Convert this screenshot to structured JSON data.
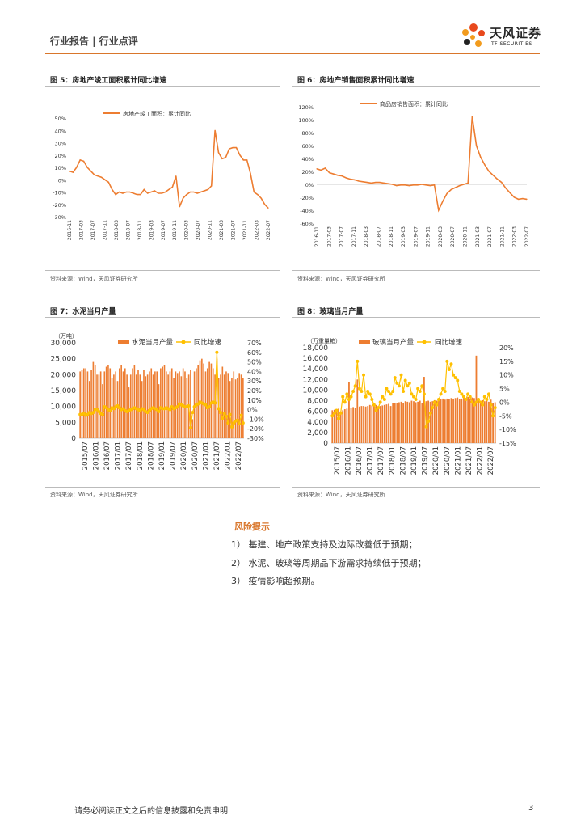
{
  "header": {
    "breadcrumb": "行业报告 | 行业点评",
    "logo_cn": "天风证券",
    "logo_en": "TF SECURITIES",
    "accent": "#d9762b"
  },
  "figures": [
    {
      "title": "图 5：房地产竣工面积累计同比增速",
      "source": "资料来源：Wind，天风证券研究所"
    },
    {
      "title": "图 6：房地产销售面积累计同比增速",
      "source": "资料来源：Wind，天风证券研究所"
    },
    {
      "title": "图 7：水泥当月产量",
      "source": "资料来源：Wind，天风证券研究所"
    },
    {
      "title": "图 8：玻璃当月产量",
      "source": "资料来源：Wind，天风证券研究所"
    }
  ],
  "risk": {
    "title": "风险提示",
    "items": [
      "1） 基建、地产政策支持及边际改善低于预期；",
      "2） 水泥、玻璃等周期品下游需求持续低于预期；",
      "3） 疫情影响超预期。"
    ]
  },
  "footer": {
    "disclaimer": "请务必阅读正文之后的信息披露和免责申明",
    "page": "3"
  },
  "chart_data": [
    {
      "type": "line",
      "title": "图 5：房地产竣工面积累计同比增速",
      "legend": "房地产竣工面积：累计同比",
      "line_color": "#ed7d31",
      "ylim": [
        -30,
        50
      ],
      "yticks": [
        -30,
        -20,
        -10,
        0,
        10,
        20,
        30,
        40,
        50
      ],
      "ytick_labels": [
        "-30%",
        "-20%",
        "-10%",
        "0%",
        "10%",
        "20%",
        "30%",
        "40%",
        "50%"
      ],
      "xtick_labels": [
        "2016-11",
        "2017-03",
        "2017-07",
        "2017-11",
        "2018-03",
        "2018-07",
        "2018-11",
        "2019-03",
        "2019-07",
        "2019-11",
        "2020-03",
        "2020-07",
        "2020-11",
        "2021-03",
        "2021-07",
        "2021-11",
        "2022-03",
        "2022-07"
      ],
      "values": [
        7,
        6,
        10,
        16,
        15,
        10,
        7,
        4,
        3,
        2,
        0,
        -2,
        -8,
        -12,
        -10,
        -11,
        -10,
        -10,
        -11,
        -12,
        -12,
        -8,
        -11,
        -10,
        -9,
        -11,
        -11,
        -10,
        -8,
        -6,
        3,
        -22,
        -15,
        -12,
        -10,
        -10,
        -11,
        -10,
        -9,
        -8,
        -5,
        40,
        22,
        17,
        18,
        25,
        26,
        26,
        20,
        16,
        16,
        5,
        -10,
        -12,
        -15,
        -20,
        -23
      ]
    },
    {
      "type": "line",
      "title": "图 6：房地产销售面积累计同比增速",
      "legend": "商品房销售面积：累计同比",
      "line_color": "#ed7d31",
      "ylim": [
        -60,
        120
      ],
      "yticks": [
        -60,
        -40,
        -20,
        0,
        20,
        40,
        60,
        80,
        100,
        120
      ],
      "ytick_labels": [
        "-60%",
        "-40%",
        "-20%",
        "0%",
        "20%",
        "40%",
        "60%",
        "80%",
        "100%",
        "120%"
      ],
      "xtick_labels": [
        "2016-11",
        "2017-03",
        "2017-07",
        "2017-11",
        "2018-03",
        "2018-07",
        "2018-11",
        "2019-03",
        "2019-07",
        "2019-11",
        "2020-03",
        "2020-07",
        "2020-11",
        "2021-03",
        "2021-07",
        "2021-11",
        "2022-03",
        "2022-07"
      ],
      "values": [
        24,
        22,
        25,
        18,
        16,
        14,
        13,
        10,
        8,
        7,
        5,
        4,
        3,
        2,
        3,
        3,
        2,
        1,
        0,
        -2,
        -1,
        -1,
        -2,
        -1,
        -1,
        0,
        -1,
        -2,
        -1,
        -40,
        -26,
        -14,
        -8,
        -5,
        -2,
        0,
        2,
        105,
        60,
        42,
        30,
        20,
        14,
        8,
        3,
        -6,
        -13,
        -20,
        -23,
        -22,
        -23
      ]
    },
    {
      "type": "bar+line",
      "title": "图 7：水泥当月产量",
      "unit_label": "（万吨）",
      "bar_legend": "水泥当月产量",
      "line_legend": "同比增速",
      "bar_color": "#ed7d31",
      "line_color": "#ffc000",
      "ylim_left": [
        0,
        30000
      ],
      "yticks_left_labels": [
        "0",
        "5,000",
        "10,000",
        "15,000",
        "20,000",
        "25,000",
        "30,000"
      ],
      "ylim_right": [
        -30,
        70
      ],
      "yticks_right_labels": [
        "-30%",
        "-20%",
        "-10%",
        "0%",
        "10%",
        "20%",
        "30%",
        "40%",
        "50%",
        "60%",
        "70%"
      ],
      "xtick_labels": [
        "2015/07",
        "2016/01",
        "2016/07",
        "2017/01",
        "2017/07",
        "2018/01",
        "2018/07",
        "2019/01",
        "2019/07",
        "2020/01",
        "2020/07",
        "2021/01",
        "2021/07",
        "2022/01",
        "2022/07"
      ],
      "bars": [
        21000,
        21500,
        22000,
        22000,
        21000,
        18000,
        21500,
        24000,
        23000,
        20000,
        20000,
        21000,
        17000,
        21000,
        22500,
        23000,
        22000,
        19000,
        20000,
        21000,
        18000,
        22000,
        23000,
        21000,
        22000,
        20000,
        16000,
        20000,
        22000,
        23000,
        20000,
        21500,
        20000,
        18000,
        21500,
        19500,
        20000,
        21000,
        22000,
        20000,
        21000,
        21000,
        17000,
        22000,
        22500,
        23000,
        21000,
        20000,
        21000,
        22000,
        19000,
        21000,
        20500,
        21000,
        19500,
        22000,
        21000,
        19000,
        20000,
        21500,
        6000,
        21000,
        22000,
        23000,
        24500,
        25000,
        23500,
        21000,
        22000,
        24000,
        23500,
        22000,
        20000,
        25000,
        19000,
        20000,
        22500,
        20000,
        21000,
        20500,
        18000,
        19000,
        21000,
        18500,
        19000,
        20500,
        20000,
        19000
      ],
      "growth": [
        -5,
        -5,
        -4,
        -6,
        -5,
        -3,
        -4,
        -3,
        0,
        0,
        -2,
        -4,
        -5,
        3,
        2,
        0,
        -1,
        2,
        1,
        3,
        4,
        2,
        0,
        1,
        -1,
        -2,
        -1,
        0,
        1,
        2,
        1,
        0,
        -1,
        1,
        0,
        -2,
        -3,
        -1,
        1,
        2,
        1,
        0,
        -2,
        2,
        1,
        1,
        2,
        1,
        0,
        3,
        1,
        2,
        3,
        6,
        5,
        4,
        3,
        3,
        4,
        -19,
        -3,
        3,
        5,
        6,
        8,
        7,
        6,
        5,
        2,
        3,
        7,
        8,
        7,
        60,
        1,
        -3,
        -9,
        -4,
        -7,
        -14,
        -5,
        -18,
        -14,
        -12,
        -11,
        -15,
        -6,
        -14
      ]
    },
    {
      "type": "bar+line",
      "title": "图 8：玻璃当月产量",
      "unit_label": "（万重量箱）",
      "bar_legend": "玻璃当月产量",
      "line_legend": "同比增速",
      "bar_color": "#ed7d31",
      "line_color": "#ffc000",
      "ylim_left": [
        0,
        18000
      ],
      "yticks_left_labels": [
        "0",
        "2,000",
        "4,000",
        "6,000",
        "8,000",
        "10,000",
        "12,000",
        "14,000",
        "16,000",
        "18,000"
      ],
      "ylim_right": [
        -15,
        20
      ],
      "yticks_right_labels": [
        "-15%",
        "-10%",
        "-5%",
        "0%",
        "5%",
        "10%",
        "15%",
        "20%"
      ],
      "xtick_labels": [
        "2015/07",
        "2016/01",
        "2016/07",
        "2017/01",
        "2017/07",
        "2018/01",
        "2018/07",
        "2019/01",
        "2019/07",
        "2020/01",
        "2020/07",
        "2021/01",
        "2021/07",
        "2022/01",
        "2022/07"
      ],
      "bars": [
        6200,
        6300,
        6400,
        6500,
        6000,
        6200,
        6400,
        6500,
        11500,
        6600,
        6800,
        6700,
        12000,
        6900,
        7000,
        7000,
        6900,
        7000,
        7200,
        7100,
        7000,
        7200,
        6800,
        7000,
        7100,
        7200,
        7300,
        7400,
        7000,
        7500,
        7600,
        7500,
        7700,
        7800,
        7600,
        7900,
        7800,
        7700,
        8000,
        7900,
        7700,
        7800,
        8000,
        7600,
        12500,
        7900,
        8000,
        7800,
        7900,
        8100,
        8000,
        8200,
        8300,
        8400,
        8200,
        8400,
        8300,
        8500,
        8400,
        8500,
        8600,
        8300,
        8400,
        8600,
        8500,
        8700,
        8400,
        8600,
        8500,
        16500,
        8200,
        8000,
        8100,
        7900,
        8000,
        7800,
        8200,
        7600,
        7700
      ],
      "growth": [
        -5,
        -4,
        -3,
        -6,
        -4,
        2,
        0,
        3,
        1,
        2,
        4,
        6,
        15,
        5,
        4,
        10,
        2,
        4,
        3,
        1,
        -1,
        -3,
        -2,
        0,
        2,
        1,
        5,
        4,
        3,
        4,
        9,
        7,
        6,
        10,
        4,
        8,
        6,
        7,
        3,
        2,
        1,
        5,
        4,
        6,
        3,
        -9,
        -7,
        -4,
        -2,
        0,
        -1,
        1,
        3,
        5,
        4,
        15,
        12,
        14,
        10,
        9,
        8,
        4,
        3,
        2,
        1,
        3,
        2,
        0,
        -1,
        0,
        1,
        0,
        -1,
        2,
        1,
        3,
        -1,
        -5,
        -2
      ]
    }
  ]
}
